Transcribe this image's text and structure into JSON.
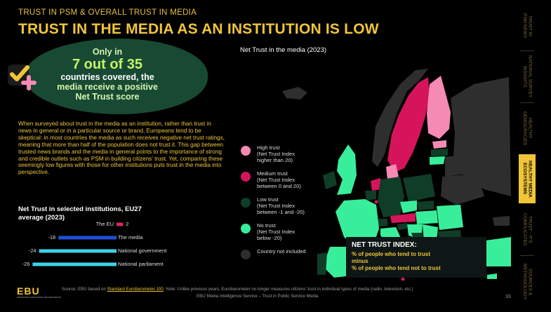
{
  "header": {
    "kicker": "TRUST IN PSM & OVERALL TRUST IN MEDIA",
    "headline": "TRUST IN THE MEDIA AS AN INSTITUTION IS LOW"
  },
  "callout": {
    "line1": "Only in",
    "line2": "7 out of 35",
    "line3": "countries covered, the",
    "line4": "media receive a positive",
    "line5": "Net Trust score",
    "icon": "check-plus-icon"
  },
  "body_text": "When surveyed about trust in the media as an institution, rather than trust in news in general or in a particular source or brand, Europeans tend to be skeptical: in most countries the media as such receives negative net trust ratings, meaning that more than half of the population does not trust it. This gap between trusted news brands and the media in general points to the importance of strong and credible outlets such as PSM in building citizens' trust. Yet, comparing these seemingly low figures with those for other institutions puts trust in the media into perspective.",
  "chart_data": [
    {
      "type": "bar",
      "title": "Net Trust in selected institutions, EU27 average (2023)",
      "categories": [
        "The EU",
        "The media",
        "National government",
        "National parliament"
      ],
      "values": [
        2,
        -18,
        -24,
        -26
      ],
      "colors": [
        "#e0245e",
        "#1f4fd8",
        "#3cd3e8",
        "#3cd3e8"
      ],
      "xlim": [
        -30,
        5
      ]
    }
  ],
  "map": {
    "title": "Net Trust in the media (2023)",
    "legend": [
      {
        "label": "High trust\n(Net Trust Index\nhigher than 20)",
        "color": "#f58ab5"
      },
      {
        "label": "Medium trust\n(Net Trust Index\nbetween 0 and 20)",
        "color": "#d6145c"
      },
      {
        "label": "Low trust\n(Net Trust Index\nbetween -1 and -20)",
        "color": "#0f3d27"
      },
      {
        "label": "No trust\n(Net Trust Index\nbelow -20)",
        "color": "#39ee9a"
      },
      {
        "label": "Country not included",
        "color": "#2e2e2e"
      }
    ]
  },
  "net_trust_index": {
    "title": "NET TRUST INDEX:",
    "line1": "% of people who tend to trust",
    "line2": "minus",
    "line3": "% of people who tend not to trust"
  },
  "sidenav": {
    "items": [
      {
        "label": "TRUST IN\nPSM NEWS",
        "active": false
      },
      {
        "label": "NATIONAL SURVEY\nINSIGHTS",
        "active": false
      },
      {
        "label": "HEALTHY\nDEMOCRACIES",
        "active": false
      },
      {
        "label": "HEALTHY MEDIA\nECOSYSTEMS",
        "active": true
      },
      {
        "label": "TRUST - IT'S\nCOMPLICATED",
        "active": false
      },
      {
        "label": "SOURCES &\nMETHODOLOGY",
        "active": false
      }
    ]
  },
  "footer": {
    "logo": "EBU",
    "logo_sub": "OPERATING EUROVISION AND EURORADIO",
    "source_prefix": "Source: EBU based on ",
    "source_link": "Standard Eurobarometer 100",
    "source_suffix": ". Note: Unlike previous years, Eurobarometer no longer measures citizens' trust in individual types of media (radio, television, etc.)",
    "credit": "EBU Media Intelligence Service – Trust in Public Service Media",
    "page": "33"
  }
}
